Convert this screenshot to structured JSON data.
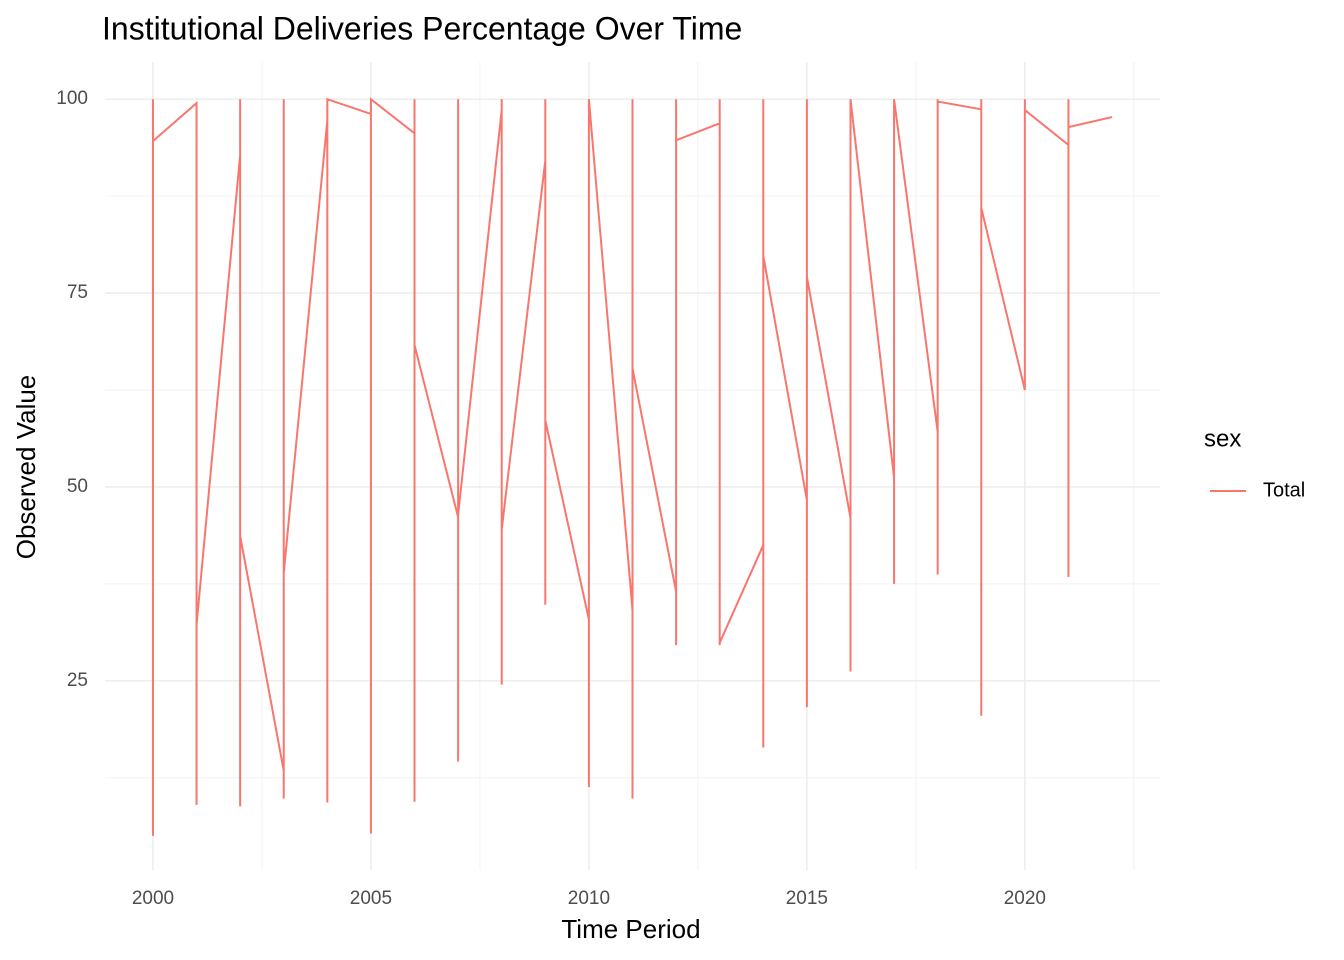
{
  "chart_data": {
    "type": "line",
    "title": "Institutional Deliveries Percentage Over Time",
    "x_label": "Time Period",
    "y_label": "Observed Value",
    "legend_title": "sex",
    "legend_position": "right",
    "grid": true,
    "x": [
      2000,
      2000,
      2000,
      2001,
      2001,
      2001,
      2002,
      2002,
      2002,
      2002,
      2003,
      2003,
      2003,
      2003,
      2004,
      2004,
      2004,
      2005,
      2005,
      2005,
      2006,
      2006,
      2006,
      2006,
      2007,
      2007,
      2007,
      2007,
      2008,
      2008,
      2008,
      2008,
      2009,
      2009,
      2009,
      2009,
      2010,
      2010,
      2010,
      2011,
      2011,
      2011,
      2011,
      2012,
      2012,
      2012,
      2012,
      2013,
      2013,
      2013,
      2013,
      2014,
      2014,
      2014,
      2014,
      2015,
      2015,
      2015,
      2015,
      2016,
      2016,
      2016,
      2017,
      2017,
      2017,
      2018,
      2018,
      2018,
      2018,
      2019,
      2019,
      2019,
      2019,
      2020,
      2020,
      2020,
      2021,
      2021,
      2021,
      2021,
      2022
    ],
    "series": [
      {
        "name": "Total",
        "color": "#f8766d",
        "values": [
          5,
          100,
          94.6,
          99.5,
          9,
          32.2,
          92.8,
          100,
          8.8,
          43.7,
          13.4,
          9.8,
          100,
          38.9,
          97.3,
          9.3,
          100,
          98.1,
          5.3,
          100,
          95.6,
          9.4,
          100,
          68.3,
          46.1,
          14.6,
          100,
          46.4,
          98.6,
          24.5,
          100,
          44.5,
          92.1,
          100,
          34.8,
          58.6,
          32.9,
          11.3,
          100,
          34.1,
          9.8,
          100,
          65.3,
          36.5,
          29.6,
          100,
          94.7,
          96.9,
          100,
          29.6,
          29.9,
          42.5,
          16.4,
          100,
          79.8,
          48.3,
          21.6,
          100,
          77.1,
          46,
          26.2,
          100,
          51.2,
          37.5,
          100,
          57.1,
          38.7,
          100,
          99.7,
          98.7,
          20.5,
          100,
          86,
          62.5,
          100,
          98.6,
          94.1,
          38.4,
          100,
          96.4,
          97.7
        ]
      }
    ],
    "xlim": [
      1998.9,
      2023.1
    ],
    "ylim": [
      0.6,
      104.8
    ],
    "xticks": [
      2000,
      2005,
      2010,
      2015,
      2020
    ],
    "yticks": [
      25,
      50,
      75,
      100
    ],
    "x_minor_grid": [
      2002.5,
      2007.5,
      2012.5,
      2017.5,
      2022.5
    ],
    "y_minor_grid": [
      12.5,
      37.5,
      62.5,
      87.5
    ]
  }
}
